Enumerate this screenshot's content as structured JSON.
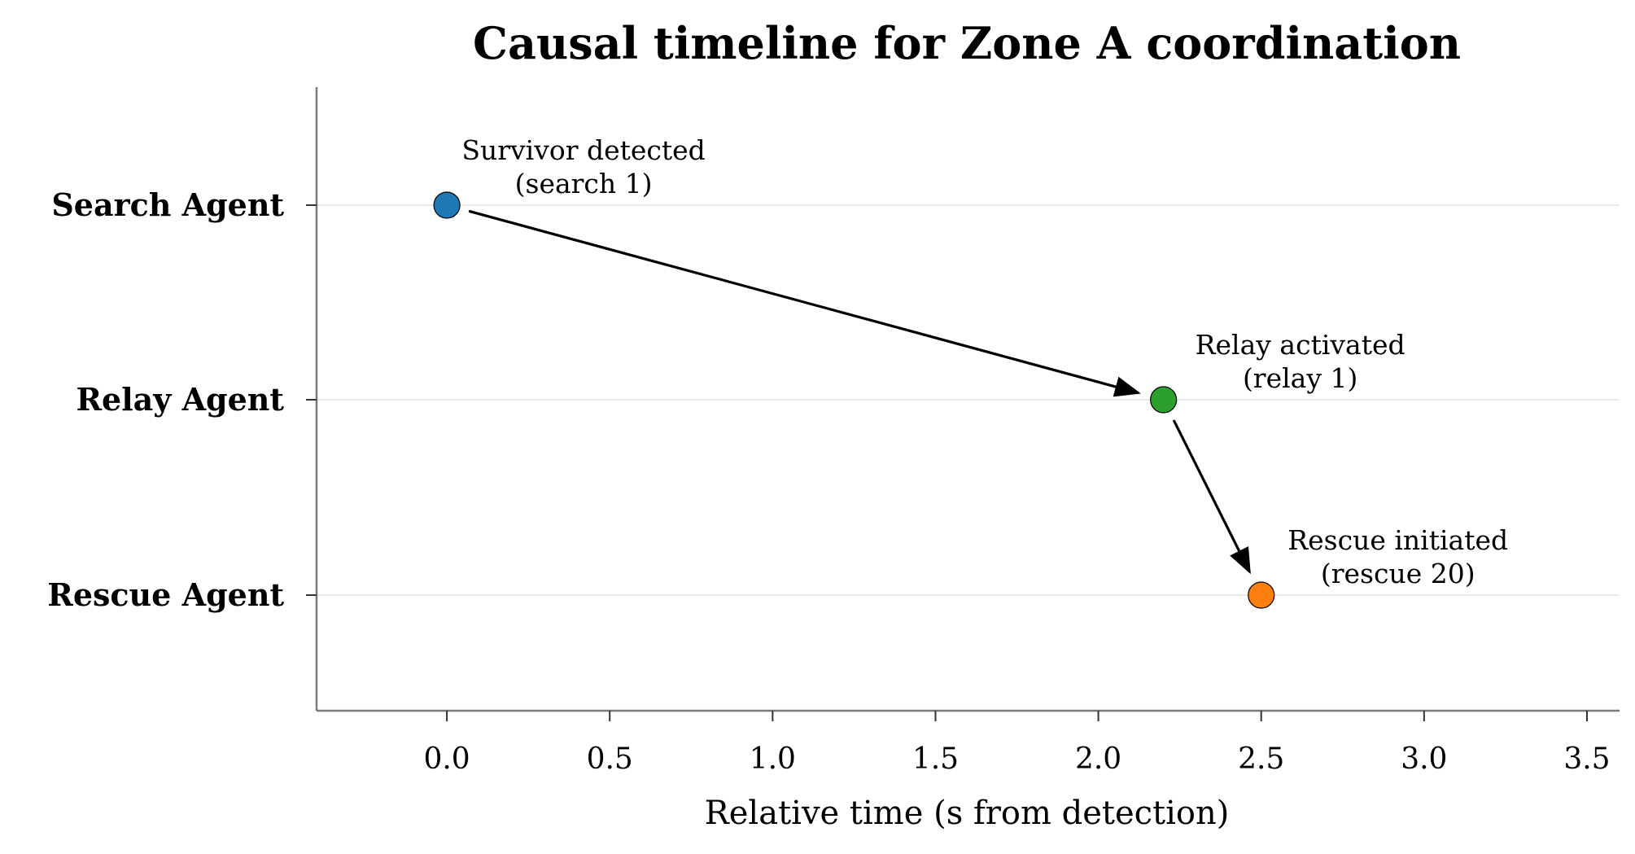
{
  "chart_data": {
    "type": "scatter",
    "title": "Causal timeline for Zone A coordination",
    "xlabel": "Relative time (s from detection)",
    "ylabel": "",
    "xlim": [
      -0.4,
      3.6
    ],
    "xticks": [
      "0.0",
      "0.5",
      "1.0",
      "1.5",
      "2.0",
      "2.5",
      "3.0",
      "3.5"
    ],
    "categories": [
      "Search Agent",
      "Relay Agent",
      "Rescue Agent"
    ],
    "grid": "horizontal",
    "events": [
      {
        "agent": "Search Agent",
        "x": 0.0,
        "label_line1": "Survivor detected",
        "label_line2": "(search 1)",
        "color": "#1f77b4"
      },
      {
        "agent": "Relay Agent",
        "x": 2.2,
        "label_line1": "Relay activated",
        "label_line2": "(relay 1)",
        "color": "#2ca02c"
      },
      {
        "agent": "Rescue Agent",
        "x": 2.5,
        "label_line1": "Rescue initiated",
        "label_line2": "(rescue 20)",
        "color": "#ff7f0e"
      }
    ],
    "links": [
      {
        "from": 0,
        "to": 1
      },
      {
        "from": 1,
        "to": 2
      }
    ]
  }
}
